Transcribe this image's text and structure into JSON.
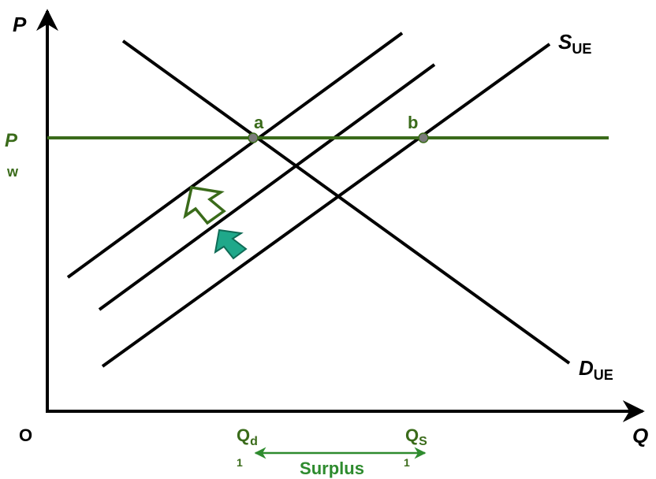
{
  "axes": {
    "y_label": "P",
    "x_label": "Q",
    "origin": "O"
  },
  "price_line": {
    "label_main": "P",
    "label_sub": "w",
    "color": "#3a6b1a"
  },
  "curves": {
    "supply_label_main": "S",
    "supply_label_sub": "UE",
    "demand_label_main": "D",
    "demand_label_sub": "UE"
  },
  "points": {
    "a": "a",
    "b": "b"
  },
  "quantities": {
    "qd_main": "Q",
    "qd_sub": "d",
    "qd_index": "1",
    "qs_main": "Q",
    "qs_sub": "S",
    "qs_index": "1"
  },
  "surplus": {
    "label": "Surplus",
    "color": "#2e8b2e"
  },
  "arrows": {
    "hollow_arrow_color": "#3a6b1a",
    "filled_arrow_color": "#1fa88a"
  }
}
